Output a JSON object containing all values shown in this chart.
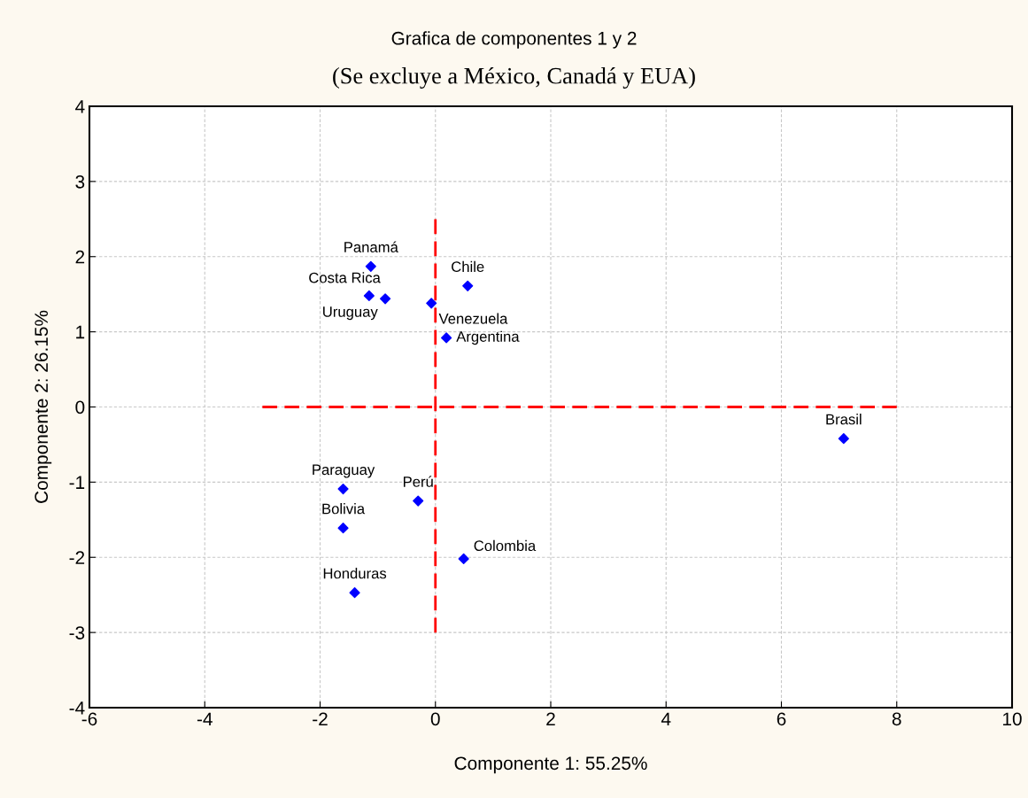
{
  "chart_data": {
    "type": "scatter",
    "title": "Grafica de componentes 1 y 2",
    "subtitle": "(Se excluye a México, Canadá y EUA)",
    "xlabel": "Componente 1: 55.25%",
    "ylabel": "Componente 2: 26.15%",
    "xlim": [
      -6,
      10
    ],
    "ylim": [
      -4,
      4
    ],
    "xticks": [
      -6,
      -4,
      -2,
      0,
      2,
      4,
      6,
      8,
      10
    ],
    "yticks": [
      -4,
      -3,
      -2,
      -1,
      0,
      1,
      2,
      3,
      4
    ],
    "grid": true,
    "legend": false,
    "series": [
      {
        "color": "#0000ff",
        "marker": "diamond",
        "x": [
          -1.12,
          -1.15,
          -0.87,
          -0.07,
          0.56,
          0.19,
          7.08,
          -1.6,
          -0.3,
          -1.6,
          0.49,
          -1.4
        ],
        "values": [
          1.87,
          1.48,
          1.44,
          1.38,
          1.61,
          0.92,
          -0.42,
          -1.09,
          -1.25,
          -1.61,
          -2.02,
          -2.47
        ]
      },
      {
        "type": "line",
        "color": "#ff0000",
        "line_style": "dashed",
        "marker": "none",
        "x": [
          -3,
          8
        ],
        "values": [
          0,
          0
        ]
      },
      {
        "type": "line",
        "color": "#ff0000",
        "line_style": "dashed",
        "marker": "none",
        "x": [
          0,
          0
        ],
        "values": [
          -3,
          2.5
        ]
      }
    ],
    "annotations": [
      {
        "text": "Panamá",
        "x": -1.12,
        "y": 1.87
      },
      {
        "text": "Costa Rica",
        "x": -1.15,
        "y": 1.48
      },
      {
        "text": "Uruguay",
        "x": -0.87,
        "y": 1.44
      },
      {
        "text": "Venezuela",
        "x": -0.07,
        "y": 1.38
      },
      {
        "text": "Chile",
        "x": 0.56,
        "y": 1.61
      },
      {
        "text": "Argentina",
        "x": 0.19,
        "y": 0.92
      },
      {
        "text": "Brasil",
        "x": 7.08,
        "y": -0.42
      },
      {
        "text": "Paraguay",
        "x": -1.6,
        "y": -1.09
      },
      {
        "text": "Perú",
        "x": -0.3,
        "y": -1.25
      },
      {
        "text": "Bolivia",
        "x": -1.6,
        "y": -1.61
      },
      {
        "text": "Colombia",
        "x": 0.49,
        "y": -2.02
      },
      {
        "text": "Honduras",
        "x": -1.4,
        "y": -2.47
      }
    ]
  }
}
